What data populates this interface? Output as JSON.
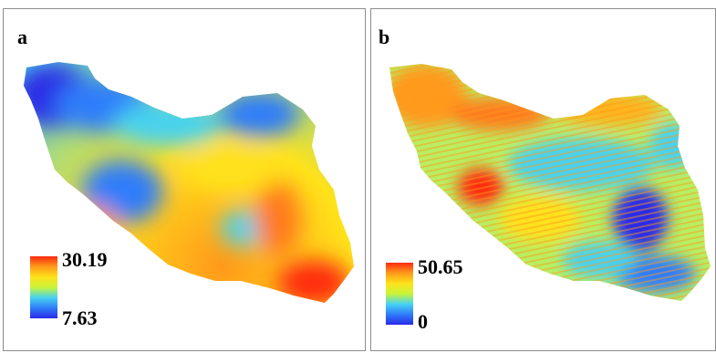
{
  "panels": [
    {
      "label": "a",
      "legend": {
        "max": "30.19",
        "min": "7.63"
      }
    },
    {
      "label": "b",
      "legend": {
        "max": "50.65",
        "min": "0"
      }
    }
  ],
  "colors": {
    "ramp": [
      "#2a2ae6",
      "#2f7dfa",
      "#47d2f0",
      "#c8f53a",
      "#ffe21a",
      "#ff9a1a",
      "#ff2a10"
    ],
    "border": "#8c8c8c"
  }
}
